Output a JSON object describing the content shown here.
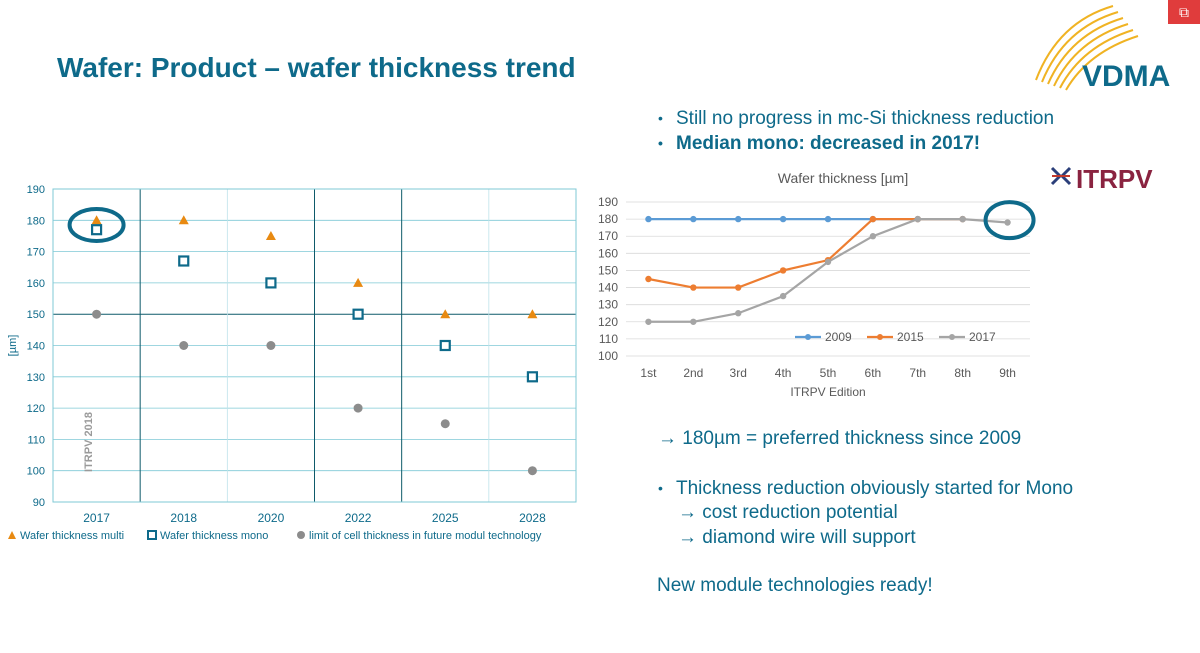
{
  "slide": {
    "title": "Wafer: Product – wafer thickness trend",
    "bullets_top": [
      {
        "text": "Still no progress in mc-Si thickness reduction",
        "bold": false
      },
      {
        "text": "Median mono: decreased in 2017!",
        "bold": true
      }
    ],
    "arrow_line": "→ 180µm = preferred thickness since 2009",
    "bullet_bottom": "Thickness reduction obviously started for Mono",
    "sub_lines": [
      "→ cost reduction potential",
      "→ diamond wire will support"
    ],
    "closing": "New module technologies ready!",
    "logos": {
      "vdma": "VDMA",
      "itrpv": "ITRPV"
    },
    "colors": {
      "primary": "#0e6a8a",
      "orange": "#e88a12",
      "gray": "#8c8c8c",
      "blue": "#5b9bd5",
      "orange2": "#ed7d31",
      "gray2": "#a5a5a5"
    }
  },
  "chart_data": [
    {
      "type": "scatter",
      "xlabel": "",
      "ylabel": "[µm]",
      "ylim": [
        90,
        190
      ],
      "yticks": [
        90,
        100,
        110,
        120,
        130,
        140,
        150,
        160,
        170,
        180,
        190
      ],
      "categories": [
        "2017",
        "2018",
        "2020",
        "2022",
        "2025",
        "2028"
      ],
      "watermark": "ITRPV 2018",
      "series": [
        {
          "name": "Wafer thickness multi",
          "marker": "triangle",
          "values": [
            180,
            180,
            175,
            160,
            150,
            150
          ]
        },
        {
          "name": "Wafer thickness mono",
          "marker": "square",
          "values": [
            177,
            167,
            160,
            150,
            140,
            130
          ]
        },
        {
          "name": "limit of cell thickness in future modul technology",
          "marker": "circle",
          "values": [
            150,
            140,
            140,
            120,
            115,
            100
          ]
        }
      ],
      "highlight": "2017"
    },
    {
      "type": "line",
      "title": "Wafer thickness [µm]",
      "xlabel": "ITRPV Edition",
      "ylabel": "",
      "ylim": [
        100,
        190
      ],
      "yticks": [
        100,
        110,
        120,
        130,
        140,
        150,
        160,
        170,
        180,
        190
      ],
      "categories": [
        "1st",
        "2nd",
        "3rd",
        "4th",
        "5th",
        "6th",
        "7th",
        "8th",
        "9th"
      ],
      "legend_position": "inside-bottom",
      "series": [
        {
          "name": "2009",
          "values": [
            180,
            180,
            180,
            180,
            180,
            180,
            180,
            180,
            null
          ]
        },
        {
          "name": "2015",
          "values": [
            145,
            140,
            140,
            150,
            156,
            180,
            180,
            180,
            null
          ]
        },
        {
          "name": "2017",
          "values": [
            120,
            120,
            125,
            135,
            155,
            170,
            180,
            180,
            178
          ]
        }
      ],
      "highlight": "9th"
    }
  ]
}
